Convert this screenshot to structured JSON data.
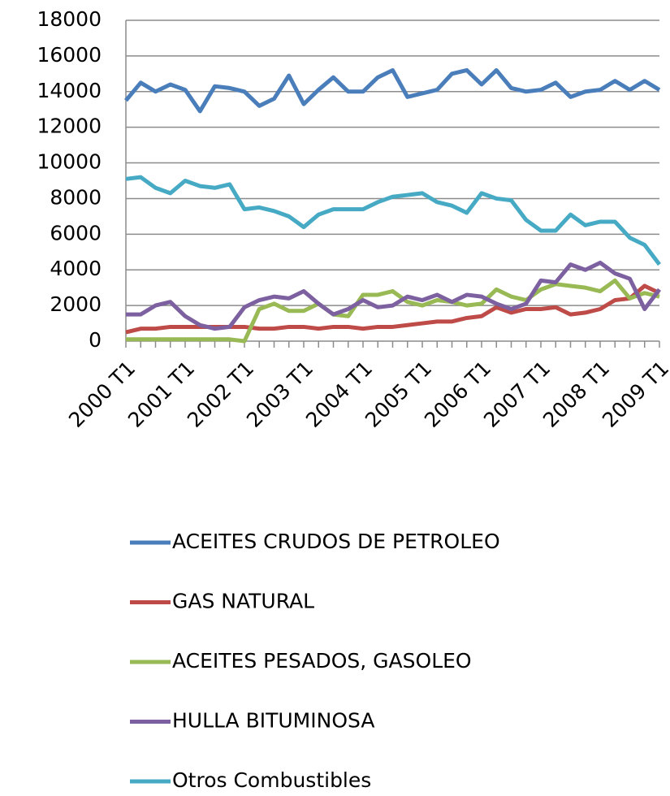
{
  "chart_data": {
    "type": "line",
    "categories": [
      "2000 T1",
      null,
      null,
      null,
      "2001 T1",
      null,
      null,
      null,
      "2002 T1",
      null,
      null,
      null,
      "2003 T1",
      null,
      null,
      null,
      "2004 T1",
      null,
      null,
      null,
      "2005 T1",
      null,
      null,
      null,
      "2006 T1",
      null,
      null,
      null,
      "2007 T1",
      null,
      null,
      null,
      "2008 T1",
      null,
      null,
      null,
      "2009 T1"
    ],
    "series": [
      {
        "name": "ACEITES CRUDOS DE PETROLEO",
        "color": "#4a7ebb",
        "values": [
          13500,
          14500,
          14000,
          14400,
          14100,
          12900,
          14300,
          14200,
          14000,
          13200,
          13600,
          14900,
          13300,
          14100,
          14800,
          14000,
          14000,
          14800,
          15200,
          13700,
          13900,
          14100,
          15000,
          15200,
          14400,
          15200,
          14200,
          14000,
          14100,
          14500,
          13700,
          14000,
          14100,
          14600,
          14100,
          14600,
          14100
        ]
      },
      {
        "name": "GAS NATURAL",
        "color": "#be4b48",
        "values": [
          500,
          700,
          700,
          800,
          800,
          800,
          800,
          800,
          800,
          700,
          700,
          800,
          800,
          700,
          800,
          800,
          700,
          800,
          800,
          900,
          1000,
          1100,
          1100,
          1300,
          1400,
          1900,
          1600,
          1800,
          1800,
          1900,
          1500,
          1600,
          1800,
          2300,
          2400,
          3100,
          2700
        ]
      },
      {
        "name": "ACEITES PESADOS, GASOLEO",
        "color": "#98b954",
        "values": [
          100,
          100,
          100,
          100,
          100,
          100,
          100,
          100,
          0,
          1800,
          2100,
          1700,
          1700,
          2100,
          1500,
          1400,
          2600,
          2600,
          2800,
          2200,
          2000,
          2300,
          2200,
          2000,
          2100,
          2900,
          2500,
          2300,
          2900,
          3200,
          3100,
          3000,
          2800,
          3400,
          2400,
          2700,
          2500
        ]
      },
      {
        "name": "HULLA BITUMINOSA",
        "color": "#7d60a0",
        "values": [
          1500,
          1500,
          2000,
          2200,
          1400,
          900,
          700,
          800,
          1900,
          2300,
          2500,
          2400,
          2800,
          2100,
          1500,
          1800,
          2300,
          1900,
          2000,
          2500,
          2300,
          2600,
          2200,
          2600,
          2500,
          2100,
          1800,
          2100,
          3400,
          3300,
          4300,
          4000,
          4400,
          3800,
          3500,
          1800,
          2900
        ]
      },
      {
        "name": "Otros Combustibles",
        "color": "#46aac5",
        "values": [
          9100,
          9200,
          8600,
          8300,
          9000,
          8700,
          8600,
          8800,
          7400,
          7500,
          7300,
          7000,
          6400,
          7100,
          7400,
          7400,
          7400,
          7800,
          8100,
          8200,
          8300,
          7800,
          7600,
          7200,
          8300,
          8000,
          7900,
          6800,
          6200,
          6200,
          7100,
          6500,
          6700,
          6700,
          5800,
          5400,
          4300
        ]
      }
    ],
    "ylim": [
      0,
      18000
    ],
    "yticks": [
      0,
      2000,
      4000,
      6000,
      8000,
      10000,
      12000,
      14000,
      16000,
      18000
    ],
    "grid": true,
    "legend": "bottom"
  }
}
